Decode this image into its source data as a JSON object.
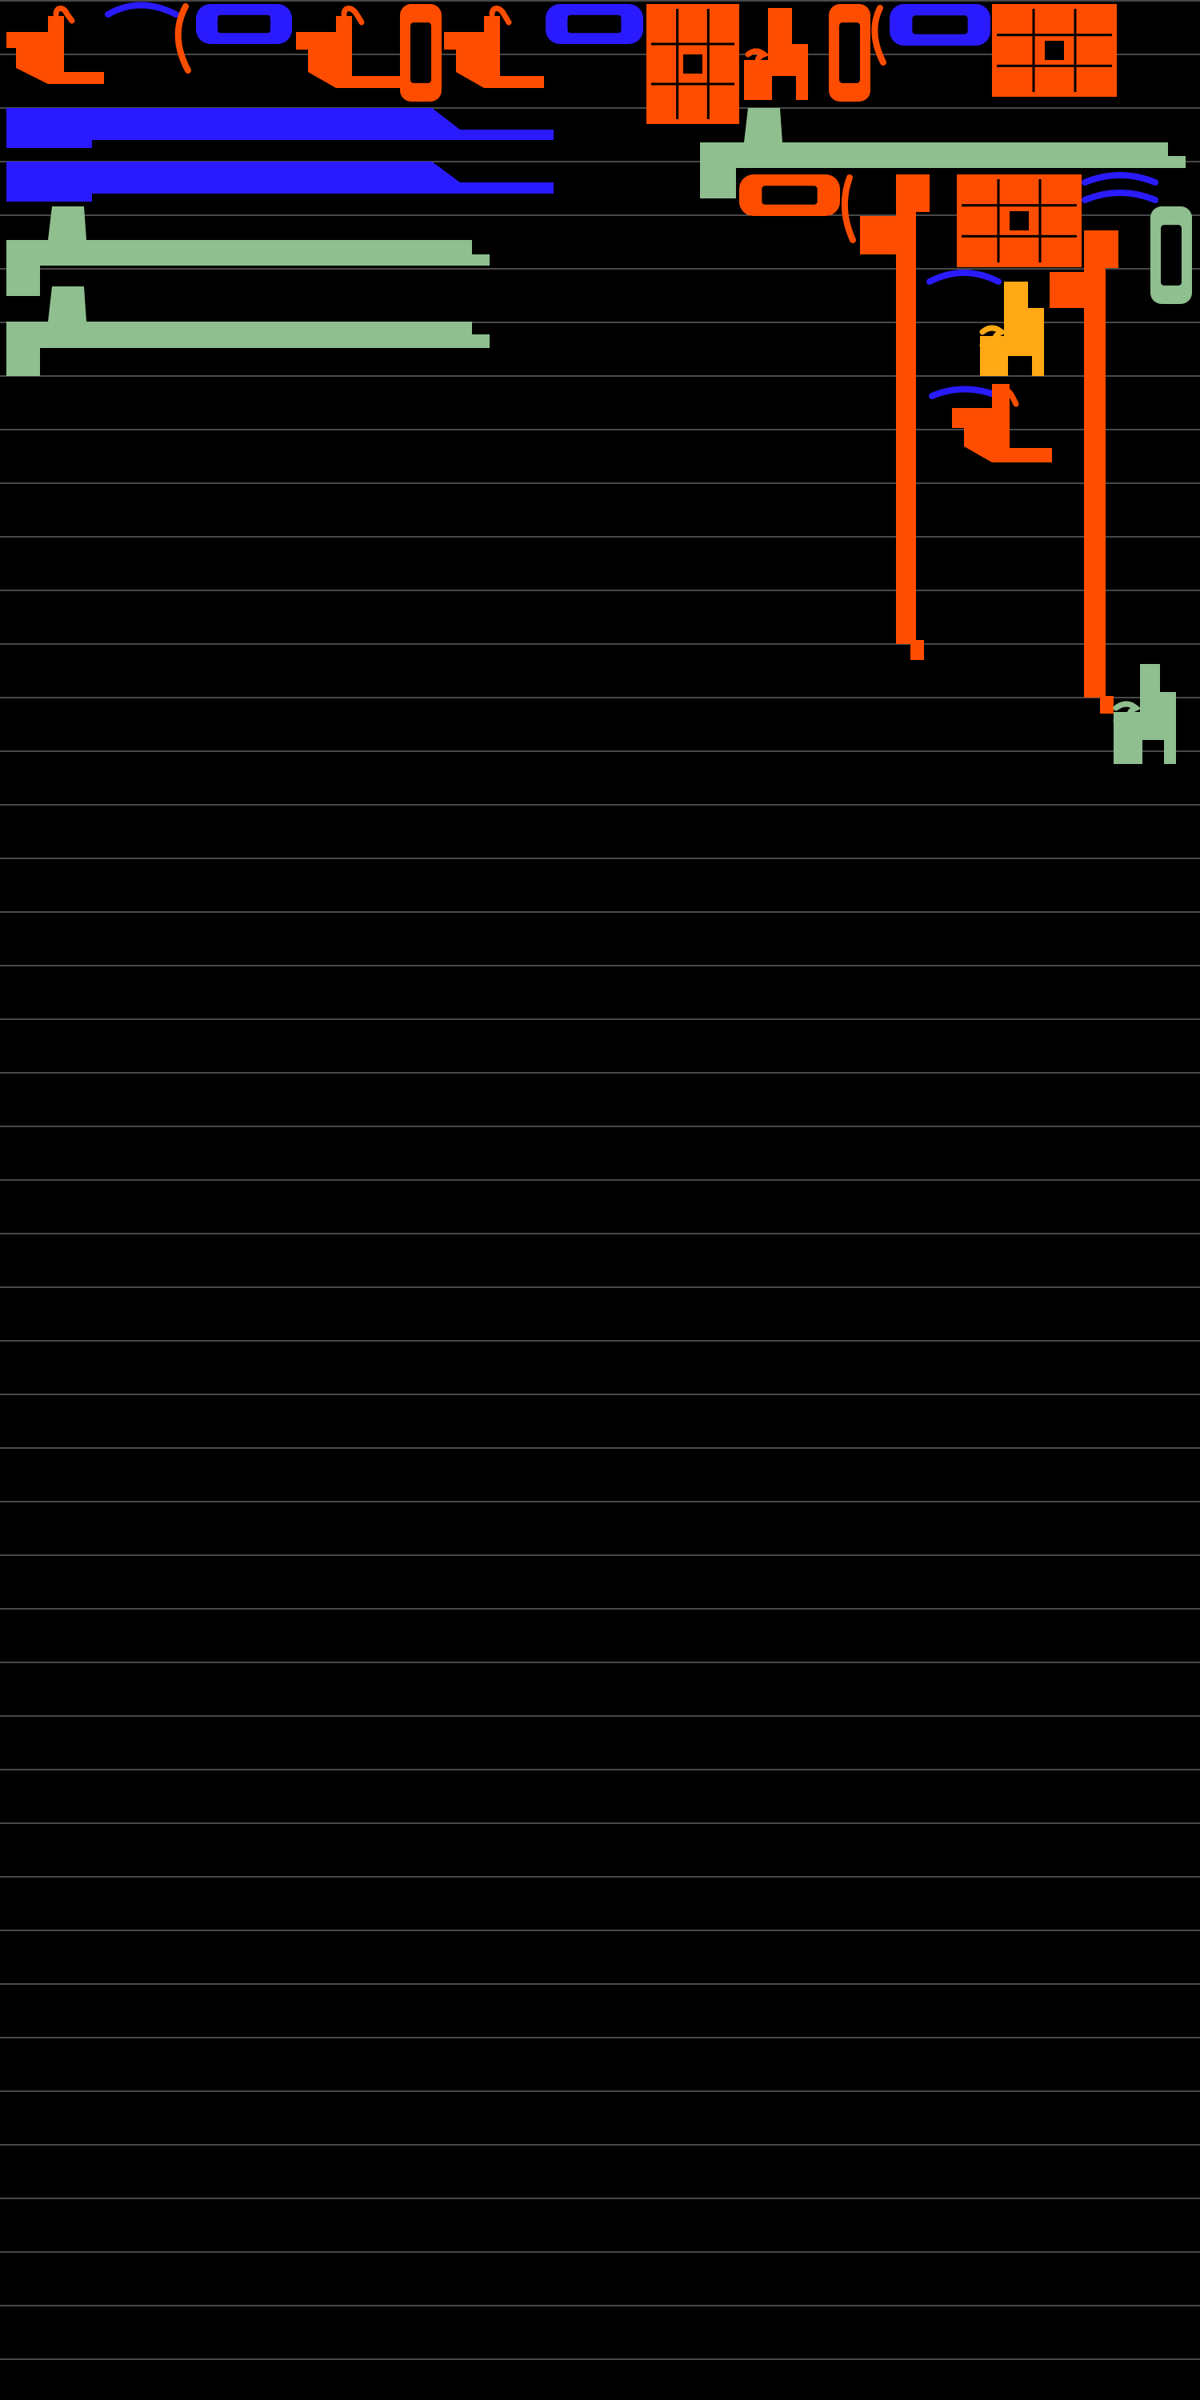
{
  "colors": {
    "background": "#000000",
    "ruled_line": "#8f8f8f",
    "orange_red": "#ff4d00",
    "blue": "#2a1bff",
    "sage_green": "#8fbf8f",
    "amber": "#ffaa14"
  },
  "glyph_shapes": [
    {
      "kind": "glyph-cluster",
      "color": "orange_red"
    },
    {
      "kind": "arc",
      "color": "blue"
    },
    {
      "kind": "paren",
      "color": "orange_red"
    },
    {
      "kind": "capsule",
      "color": "blue"
    },
    {
      "kind": "glyph-cluster",
      "color": "orange_red"
    },
    {
      "kind": "capsule-vertical",
      "color": "orange_red"
    },
    {
      "kind": "glyph-cluster",
      "color": "orange_red"
    },
    {
      "kind": "capsule",
      "color": "blue"
    },
    {
      "kind": "grid-block",
      "color": "orange_red"
    },
    {
      "kind": "letter-shape",
      "color": "orange_red"
    },
    {
      "kind": "capsule-vertical",
      "color": "orange_red"
    },
    {
      "kind": "paren",
      "color": "orange_red"
    },
    {
      "kind": "capsule",
      "color": "blue"
    },
    {
      "kind": "grid-block",
      "color": "orange_red"
    },
    {
      "kind": "bar",
      "color": "blue"
    },
    {
      "kind": "bar",
      "color": "blue"
    },
    {
      "kind": "long-bar",
      "color": "sage_green"
    },
    {
      "kind": "long-bar",
      "color": "sage_green"
    },
    {
      "kind": "long-bar",
      "color": "sage_green"
    },
    {
      "kind": "capsule",
      "color": "orange_red"
    },
    {
      "kind": "paren",
      "color": "orange_red"
    },
    {
      "kind": "vertical-column",
      "color": "orange_red"
    },
    {
      "kind": "grid-block",
      "color": "orange_red"
    },
    {
      "kind": "arc-pair",
      "color": "blue"
    },
    {
      "kind": "capsule-vertical",
      "color": "sage_green"
    },
    {
      "kind": "arc",
      "color": "blue"
    },
    {
      "kind": "letter-shape",
      "color": "amber"
    },
    {
      "kind": "arc",
      "color": "blue"
    },
    {
      "kind": "glyph-cluster",
      "color": "orange_red"
    },
    {
      "kind": "vertical-column",
      "color": "orange_red"
    },
    {
      "kind": "letter-shape",
      "color": "sage_green"
    }
  ]
}
